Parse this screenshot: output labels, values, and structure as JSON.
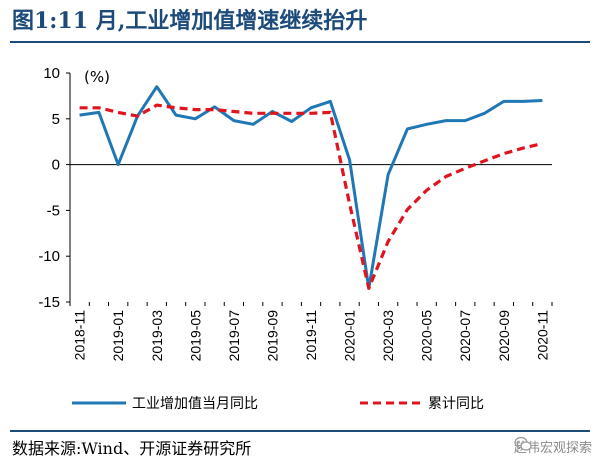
{
  "title": "图1:11 月,工业增加值增速继续抬升",
  "source": "数据来源:Wind、开源证券研究所",
  "watermark": "赵伟宏观探索",
  "colors": {
    "title": "#1c4a7a",
    "series1": "#1f77b4",
    "series2": "#e0141e"
  },
  "chart_data": {
    "type": "line",
    "title": "",
    "ylabel": "(%)",
    "xlabel": "",
    "ylim": [
      -15,
      10
    ],
    "yticks": [
      10,
      5,
      0,
      -5,
      -10,
      -15
    ],
    "xticks": [
      "2018-11",
      "2019-01",
      "2019-03",
      "2019-05",
      "2019-07",
      "2019-09",
      "2019-11",
      "2020-01",
      "2020-03",
      "2020-05",
      "2020-07",
      "2020-09",
      "2020-11"
    ],
    "x": [
      "2018-11",
      "2018-12",
      "2019-01",
      "2019-02",
      "2019-03",
      "2019-04",
      "2019-05",
      "2019-06",
      "2019-07",
      "2019-08",
      "2019-09",
      "2019-10",
      "2019-11",
      "2019-12",
      "2020-01",
      "2020-02",
      "2020-03",
      "2020-04",
      "2020-05",
      "2020-06",
      "2020-07",
      "2020-08",
      "2020-09",
      "2020-10",
      "2020-11"
    ],
    "legend_position": "bottom",
    "grid": false,
    "series": [
      {
        "name": "工业增加值当月同比",
        "style": "solid",
        "values": [
          5.4,
          5.7,
          0.0,
          5.3,
          8.5,
          5.4,
          5.0,
          6.3,
          4.8,
          4.4,
          5.8,
          4.7,
          6.2,
          6.9,
          0.5,
          -13.5,
          -1.1,
          3.9,
          4.4,
          4.8,
          4.8,
          5.6,
          6.9,
          6.9,
          7.0
        ]
      },
      {
        "name": "累计同比",
        "style": "dashed",
        "values": [
          6.2,
          6.2,
          5.7,
          5.3,
          6.5,
          6.2,
          6.0,
          6.0,
          5.8,
          5.6,
          5.6,
          5.6,
          5.6,
          5.7,
          -4.3,
          -13.5,
          -8.4,
          -4.9,
          -2.8,
          -1.3,
          -0.4,
          0.4,
          1.2,
          1.8,
          2.3
        ]
      }
    ]
  }
}
